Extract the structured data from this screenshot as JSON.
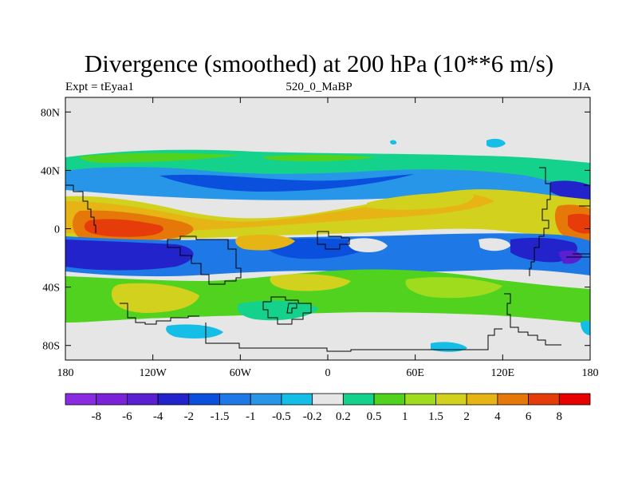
{
  "chart_data": {
    "type": "contour map",
    "title": "Divergence (smoothed) at 200 hPa (10**6 m/s)",
    "left_string": "Expt = tEyaa1",
    "center_string": "520_0_MaBP",
    "right_string": "JJA",
    "x_ticks": [
      "180",
      "120W",
      "60W",
      "0",
      "60E",
      "120E",
      "180"
    ],
    "y_ticks": [
      "80N",
      "40N",
      "0",
      "40S",
      "80S"
    ],
    "xlim": [
      -180,
      180
    ],
    "ylim": [
      -90,
      90
    ],
    "colorbar": {
      "labels": [
        "-8",
        "-6",
        "-4",
        "-2",
        "-1.5",
        "-1",
        "-0.5",
        "-0.2",
        "0.2",
        "0.5",
        "1",
        "1.5",
        "2",
        "4",
        "6",
        "8"
      ],
      "colors": [
        "#8a2be2",
        "#7a22d8",
        "#5a1fd0",
        "#2323cc",
        "#0a50dc",
        "#1e78e6",
        "#2896e8",
        "#14bee6",
        "#e6e6e6",
        "#14d28c",
        "#50d21e",
        "#a0dc1e",
        "#d2d21e",
        "#e6b414",
        "#e6780a",
        "#e63c0a",
        "#e60000"
      ]
    },
    "background_color": "#e6e6e6"
  }
}
